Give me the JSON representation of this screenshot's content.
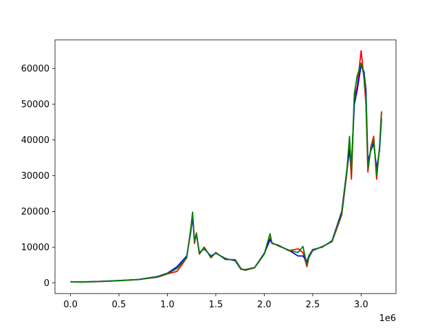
{
  "chart_data": {
    "type": "line",
    "title": "",
    "xlabel": "",
    "ylabel": "",
    "x_offset_label": "1e6",
    "xlim": [
      -160000,
      3360000
    ],
    "ylim": [
      -3000,
      68000
    ],
    "x_ticks": [
      0,
      500000.0,
      1000000.0,
      1500000.0,
      2000000.0,
      2500000.0,
      3000000.0
    ],
    "x_tick_labels": [
      "0.0",
      "0.5",
      "1.0",
      "1.5",
      "2.0",
      "2.5",
      "3.0"
    ],
    "y_ticks": [
      0,
      10000,
      20000,
      30000,
      40000,
      50000,
      60000
    ],
    "y_tick_labels": [
      "0",
      "10000",
      "20000",
      "30000",
      "40000",
      "50000",
      "60000"
    ],
    "grid": false,
    "legend": "none",
    "series": [
      {
        "color": "#ff0000",
        "x": [
          0,
          100000,
          300000,
          500000,
          700000,
          900000,
          1000000,
          1100000,
          1200000,
          1240000,
          1260000,
          1280000,
          1300000,
          1330000,
          1380000,
          1450000,
          1500000,
          1600000,
          1700000,
          1760000,
          1800000,
          1900000,
          2000000,
          2060000,
          2080000,
          2150000,
          2250000,
          2350000,
          2400000,
          2440000,
          2460000,
          2500000,
          2600000,
          2700000,
          2800000,
          2850000,
          2880000,
          2900000,
          2930000,
          2960000,
          3000000,
          3030000,
          3050000,
          3070000,
          3100000,
          3130000,
          3160000,
          3190000,
          3210000
        ],
        "values": [
          300,
          200,
          350,
          600,
          900,
          1600,
          2500,
          3200,
          7000,
          15000,
          19500,
          11000,
          14000,
          8000,
          10000,
          7000,
          8500,
          6500,
          6500,
          4000,
          3500,
          4200,
          8000,
          12500,
          11000,
          10500,
          9000,
          9500,
          8500,
          4500,
          7000,
          9000,
          10200,
          11500,
          19000,
          30000,
          38000,
          29000,
          52000,
          55000,
          65000,
          57000,
          50000,
          31000,
          38000,
          41000,
          29000,
          38000,
          48000
        ]
      },
      {
        "color": "#0000ff",
        "x": [
          0,
          100000,
          300000,
          500000,
          700000,
          900000,
          1000000,
          1100000,
          1200000,
          1240000,
          1260000,
          1280000,
          1300000,
          1330000,
          1380000,
          1450000,
          1500000,
          1600000,
          1700000,
          1760000,
          1800000,
          1900000,
          2000000,
          2060000,
          2080000,
          2150000,
          2250000,
          2350000,
          2400000,
          2440000,
          2460000,
          2500000,
          2600000,
          2700000,
          2800000,
          2850000,
          2880000,
          2900000,
          2930000,
          2960000,
          3000000,
          3030000,
          3050000,
          3070000,
          3100000,
          3130000,
          3160000,
          3190000,
          3210000
        ],
        "values": [
          300,
          250,
          400,
          650,
          950,
          1800,
          2700,
          4500,
          7500,
          14000,
          18500,
          12000,
          13500,
          8500,
          9500,
          7500,
          8300,
          6800,
          6200,
          3800,
          3700,
          4300,
          8300,
          12000,
          11200,
          10300,
          9200,
          7500,
          7500,
          6000,
          7500,
          9300,
          10000,
          11800,
          20000,
          31000,
          37000,
          33000,
          50000,
          54000,
          61000,
          59000,
          54000,
          34000,
          37000,
          39000,
          32000,
          37000,
          46000
        ]
      },
      {
        "color": "#008000",
        "x": [
          0,
          100000,
          300000,
          500000,
          700000,
          900000,
          1000000,
          1100000,
          1200000,
          1240000,
          1260000,
          1280000,
          1300000,
          1330000,
          1380000,
          1450000,
          1500000,
          1600000,
          1700000,
          1760000,
          1800000,
          1900000,
          2000000,
          2060000,
          2080000,
          2150000,
          2250000,
          2350000,
          2400000,
          2440000,
          2460000,
          2500000,
          2600000,
          2700000,
          2800000,
          2850000,
          2880000,
          2900000,
          2930000,
          2960000,
          3000000,
          3030000,
          3050000,
          3070000,
          3100000,
          3130000,
          3160000,
          3190000,
          3210000
        ],
        "values": [
          300,
          220,
          380,
          620,
          920,
          1700,
          2600,
          4000,
          7200,
          14500,
          19800,
          11500,
          13800,
          8200,
          9800,
          7200,
          8400,
          6600,
          6400,
          3900,
          3600,
          4250,
          8100,
          13800,
          11100,
          10400,
          9100,
          8500,
          10200,
          5000,
          7200,
          9100,
          10100,
          11600,
          19500,
          30500,
          41000,
          31000,
          53000,
          58000,
          61500,
          58000,
          52000,
          32000,
          37500,
          40000,
          30000,
          37800,
          47500
        ]
      }
    ]
  }
}
